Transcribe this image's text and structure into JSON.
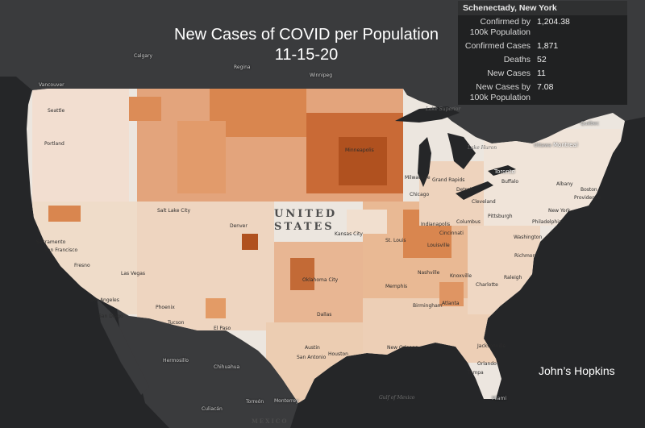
{
  "title_line1": "New Cases of COVID per Population",
  "title_line2": "11-15-20",
  "credit": "John’s Hopkins",
  "popup": {
    "heading": "Schenectady, New York",
    "rows": [
      {
        "label": "Confirmed by 100k Population",
        "value": "1,204.38"
      },
      {
        "label": "Confirmed Cases",
        "value": "1,871"
      },
      {
        "label": "Deaths",
        "value": "52"
      },
      {
        "label": "New Cases",
        "value": "11"
      },
      {
        "label": "New Cases by 100k Population",
        "value": "7.08"
      }
    ]
  },
  "country_labels": {
    "united": "UNITED",
    "states": "STATES",
    "mexico": "MEXICO"
  },
  "water_labels": {
    "lake_superior": "Lake Superior",
    "lake_huron": "Lake Huron",
    "gulf_mexico": "Gulf of Mexico"
  },
  "cities": {
    "calgary": "Calgary",
    "regina": "Regina",
    "winnipeg": "Winnipeg",
    "vancouver": "Vancouver",
    "seattle": "Seattle",
    "portland": "Portland",
    "sacramento": "Sacramento",
    "san_francisco": "San Francisco",
    "fresno": "Fresno",
    "las_vegas": "Las Vegas",
    "los_angeles": "Los Angeles",
    "san_diego": "San Diego",
    "phoenix": "Phoenix",
    "tucson": "Tucson",
    "el_paso": "El Paso",
    "salt_lake": "Salt Lake City",
    "denver": "Denver",
    "kansas_city": "Kansas City",
    "oklahoma": "Oklahoma City",
    "dallas": "Dallas",
    "austin": "Austin",
    "san_antonio": "San Antonio",
    "houston": "Houston",
    "new_orleans": "New Orleans",
    "st_louis": "St. Louis",
    "memphis": "Memphis",
    "nashville": "Nashville",
    "minneapolis": "Minneapolis",
    "milwaukee": "Milwaukee",
    "chicago": "Chicago",
    "detroit": "Detroit",
    "grand_rapids": "Grand Rapids",
    "indianapolis": "Indianapolis",
    "columbus": "Columbus",
    "cincinnati": "Cincinnati",
    "louisville": "Louisville",
    "cleveland": "Cleveland",
    "pittsburgh": "Pittsburgh",
    "toronto": "Toronto",
    "buffalo": "Buffalo",
    "ottawa": "Ottawa",
    "montreal": "Montreal",
    "quebec": "Québec",
    "albany": "Albany",
    "boston": "Boston",
    "providence": "Providence",
    "new_york": "New York",
    "philadelphia": "Philadelphia",
    "washington": "Washington",
    "richmond": "Richmond",
    "raleigh": "Raleigh",
    "charlotte": "Charlotte",
    "atlanta": "Atlanta",
    "birmingham": "Birmingham",
    "knoxville": "Knoxville",
    "jacksonville": "Jacksonville",
    "tampa": "Tampa",
    "orlando": "Orlando",
    "miami": "Miami",
    "hermosillo": "Hermosillo",
    "chihuahua": "Chihuahua",
    "torreon": "Torreón",
    "monterrey": "Monterrey",
    "culiacan": "Culiacán"
  },
  "colors": {
    "background": "#252628",
    "land_other": "#3a3b3d",
    "ramp": [
      "#ece6df",
      "#f2dccb",
      "#f0c9a9",
      "#eab58a",
      "#e39b66",
      "#d97e43",
      "#c75f2a",
      "#a8471b"
    ]
  }
}
